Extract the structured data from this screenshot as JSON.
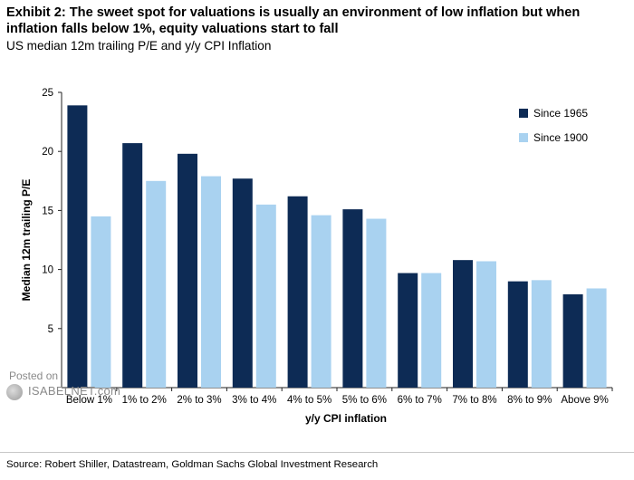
{
  "header": {
    "title": "Exhibit 2: The sweet spot for valuations is usually an environment of low inflation but when inflation falls below 1%, equity valuations start to fall",
    "subtitle": "US median 12m trailing P/E and y/y CPI Inflation"
  },
  "footer": {
    "source": "Source: Robert Shiller, Datastream, Goldman Sachs Global Investment Research"
  },
  "watermark": {
    "line1": "Posted on",
    "line2": "ISABELNET.com"
  },
  "colors": {
    "series1": "#0d2b55",
    "series2": "#a9d2f0"
  },
  "chart_data": {
    "type": "bar",
    "title": "US median 12m trailing P/E and y/y CPI Inflation",
    "xlabel": "y/y CPI inflation",
    "ylabel": "Median 12m trailing P/E",
    "ylim": [
      0,
      25
    ],
    "yticks": [
      5,
      10,
      15,
      20,
      25
    ],
    "grid": false,
    "legend_position": "top-right",
    "categories": [
      "Below 1%",
      "1% to 2%",
      "2% to 3%",
      "3% to 4%",
      "4% to 5%",
      "5% to 6%",
      "6% to 7%",
      "7% to 8%",
      "8% to 9%",
      "Above 9%"
    ],
    "series": [
      {
        "name": "Since 1965",
        "color": "#0d2b55",
        "values": [
          23.9,
          20.7,
          19.8,
          17.7,
          16.2,
          15.1,
          9.7,
          10.8,
          9.0,
          7.9
        ]
      },
      {
        "name": "Since 1900",
        "color": "#a9d2f0",
        "values": [
          14.5,
          17.5,
          17.9,
          15.5,
          14.6,
          14.3,
          9.7,
          10.7,
          9.1,
          8.4
        ]
      }
    ]
  }
}
